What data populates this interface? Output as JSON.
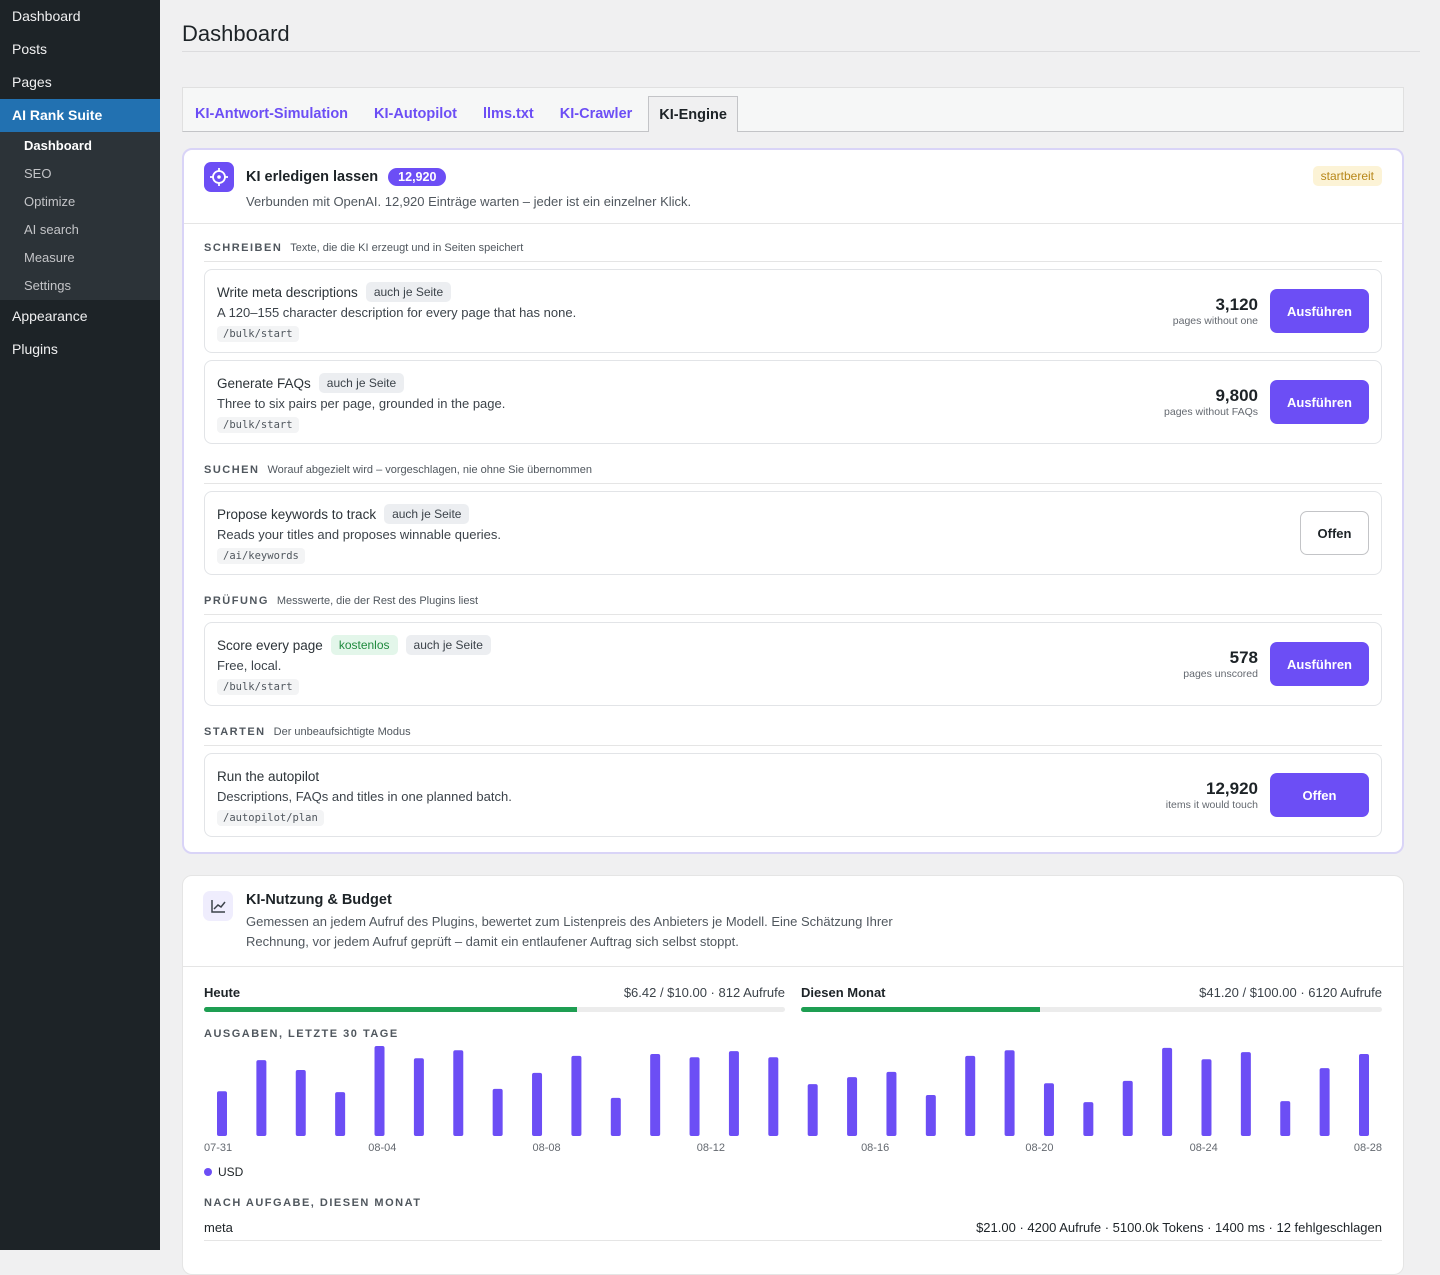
{
  "sidebar": {
    "menu_top": [
      "Dashboard",
      "Posts",
      "Pages"
    ],
    "active": "AI Rank Suite",
    "submenu": [
      "Dashboard",
      "SEO",
      "Optimize",
      "AI search",
      "Measure",
      "Settings"
    ],
    "menu_bottom": [
      "Appearance",
      "Plugins"
    ]
  },
  "page_title": "Dashboard",
  "tabs": [
    "KI-Antwort-Simulation",
    "KI-Autopilot",
    "llms.txt",
    "KI-Crawler",
    "KI-Engine"
  ],
  "engine": {
    "title": "KI erledigen lassen",
    "badge": "12,920",
    "subtitle": "Verbunden mit OpenAI. 12,920 Einträge warten – jeder ist ein einzelner Klick.",
    "status": "startbereit",
    "sections": [
      {
        "heading": "SCHREIBEN",
        "desc": "Texte, die die KI erzeugt und in Seiten speichert",
        "tasks": [
          {
            "title": "Write meta descriptions",
            "tags": [
              "auch je Seite"
            ],
            "desc": "A 120–155 character description for every page that has none.",
            "endpoint": "/bulk/start",
            "count": "3,120",
            "count_label": "pages without one",
            "button": "Ausführen",
            "button_style": "primary"
          },
          {
            "title": "Generate FAQs",
            "tags": [
              "auch je Seite"
            ],
            "desc": "Three to six pairs per page, grounded in the page.",
            "endpoint": "/bulk/start",
            "count": "9,800",
            "count_label": "pages without FAQs",
            "button": "Ausführen",
            "button_style": "primary"
          }
        ]
      },
      {
        "heading": "SUCHEN",
        "desc": "Worauf abgezielt wird – vorgeschlagen, nie ohne Sie übernommen",
        "tasks": [
          {
            "title": "Propose keywords to track",
            "tags": [
              "auch je Seite"
            ],
            "desc": "Reads your titles and proposes winnable queries.",
            "endpoint": "/ai/keywords",
            "button": "Offen",
            "button_style": "outline"
          }
        ]
      },
      {
        "heading": "PRÜFUNG",
        "desc": "Messwerte, die der Rest des Plugins liest",
        "tasks": [
          {
            "title": "Score every page",
            "free_tag": "kostenlos",
            "tags": [
              "auch je Seite"
            ],
            "desc": "Free, local.",
            "endpoint": "/bulk/start",
            "count": "578",
            "count_label": "pages unscored",
            "button": "Ausführen",
            "button_style": "primary"
          }
        ]
      },
      {
        "heading": "STARTEN",
        "desc": "Der unbeaufsichtigte Modus",
        "tasks": [
          {
            "title": "Run the autopilot",
            "tags": [],
            "desc": "Descriptions, FAQs and titles in one planned batch.",
            "endpoint": "/autopilot/plan",
            "count": "12,920",
            "count_label": "items it would touch",
            "button": "Offen",
            "button_style": "primary"
          }
        ]
      }
    ]
  },
  "usage": {
    "title": "KI-Nutzung & Budget",
    "desc": "Gemessen an jedem Aufruf des Plugins, bewertet zum Listenpreis des Anbieters je Modell. Eine Schätzung Ihrer Rechnung, vor jedem Aufruf geprüft – damit ein entlaufener Auftrag sich selbst stoppt.",
    "meters": [
      {
        "label": "Heute",
        "text": "$6.42 / $10.00 · 812 Aufrufe",
        "spent": 6.42,
        "budget": 10.0
      },
      {
        "label": "Diesen Monat",
        "text": "$41.20 / $100.00 · 6120 Aufrufe",
        "spent": 41.2,
        "budget": 100.0
      }
    ],
    "breakdown_title": "NACH AUFGABE, DIESEN MONAT",
    "breakdown": [
      {
        "name": "meta",
        "text": "$21.00 · 4200 Aufrufe · 5100.0k Tokens · 1400 ms · 12 fehlgeschlagen"
      }
    ]
  },
  "chart_data": {
    "type": "bar",
    "title": "AUSGABEN, LETZTE 30 TAGE",
    "categories": [
      "07-31",
      null,
      null,
      null,
      "08-04",
      null,
      null,
      null,
      "08-08",
      null,
      null,
      null,
      "08-12",
      null,
      null,
      null,
      "08-16",
      null,
      null,
      null,
      "08-20",
      null,
      null,
      null,
      "08-24",
      null,
      null,
      null,
      "08-28",
      null
    ],
    "series": [
      {
        "name": "USD",
        "color": "#6c4ef5",
        "values": [
          0.95,
          1.61,
          1.4,
          0.93,
          1.91,
          1.65,
          1.82,
          1.0,
          1.34,
          1.7,
          0.81,
          1.74,
          1.67,
          1.8,
          1.67,
          1.1,
          1.25,
          1.36,
          0.87,
          1.7,
          1.82,
          1.12,
          0.72,
          1.17,
          1.87,
          1.63,
          1.78,
          0.74,
          1.44,
          1.74
        ]
      }
    ]
  }
}
